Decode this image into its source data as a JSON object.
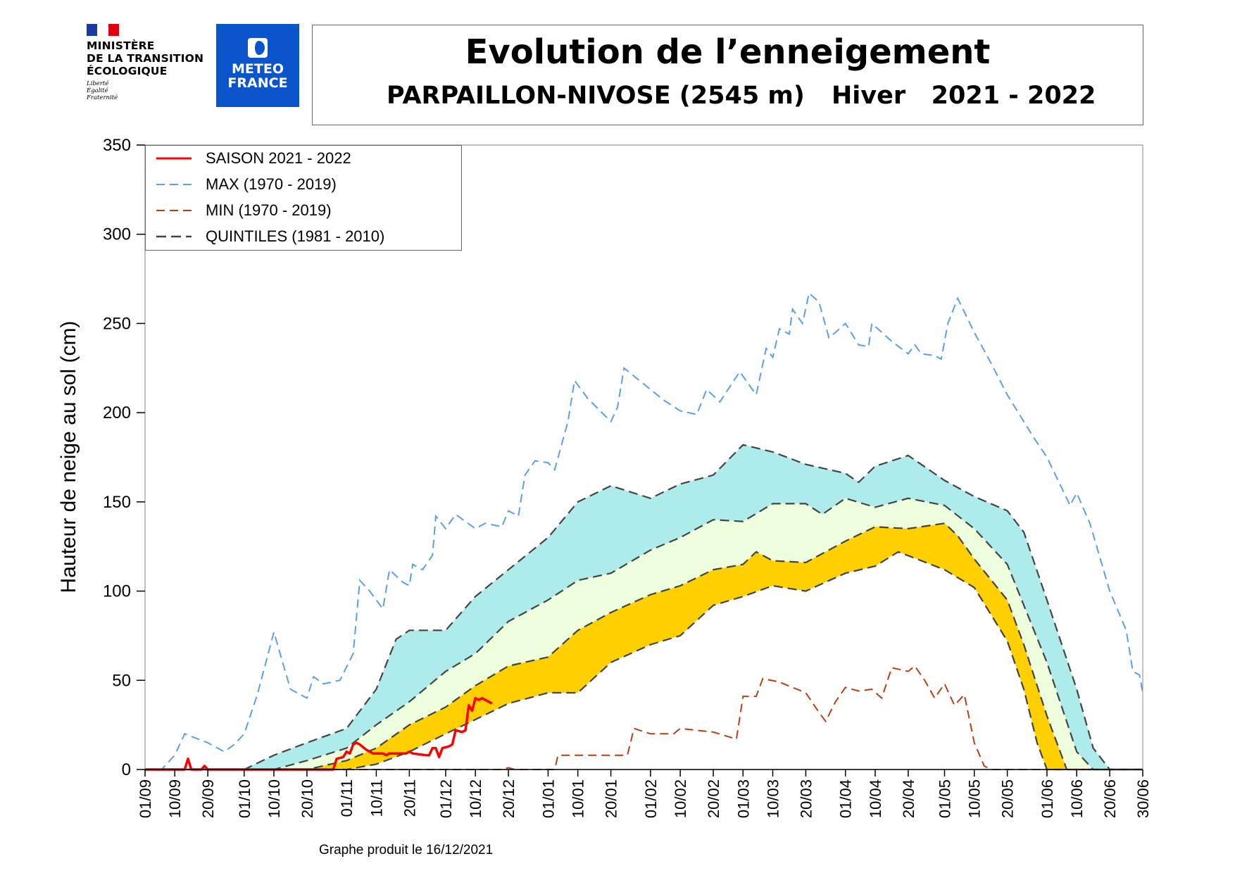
{
  "header": {
    "ministry_lines": [
      "MINISTÈRE",
      "DE LA TRANSITION",
      "ÉCOLOGIQUE"
    ],
    "motto": [
      "Liberté",
      "Égalité",
      "Fraternité"
    ],
    "meteo_logo": [
      "METEO",
      "FRANCE"
    ],
    "title": "Evolution de l’enneigement",
    "station": "PARPAILLON-NIVOSE (2545 m)",
    "season": "Hiver   2021 - 2022"
  },
  "footer": "Graphe produit le 16/12/2021",
  "chart_data": {
    "type": "line",
    "title": "Evolution de l’enneigement",
    "ylabel": "Hauteur de neige au sol (cm)",
    "xlabel": "",
    "ylim": [
      0,
      350
    ],
    "yticks": [
      0,
      50,
      100,
      150,
      200,
      250,
      300,
      350
    ],
    "xlim": [
      "01/09",
      "30/06"
    ],
    "xticks": [
      "01/09",
      "10/09",
      "20/09",
      "01/10",
      "10/10",
      "20/10",
      "01/11",
      "10/11",
      "20/11",
      "01/12",
      "10/12",
      "20/12",
      "01/01",
      "10/01",
      "20/01",
      "01/02",
      "10/02",
      "20/02",
      "01/03",
      "10/03",
      "20/03",
      "01/04",
      "10/04",
      "20/04",
      "01/05",
      "10/05",
      "20/05",
      "01/06",
      "10/06",
      "20/06",
      "30/06"
    ],
    "grid": false,
    "legend_position": "top-left",
    "colors": {
      "season": "#ff0000",
      "max": "#5a9ff0",
      "min": "#b8400f",
      "quintiles": "#444444",
      "band_q20_q40": "#ffd000",
      "band_q40_q60": "#eeffdd",
      "band_q60_q80": "#aeeceb"
    },
    "series": [
      {
        "name": "SAISON 2021 - 2022",
        "style": "solid",
        "points": [
          [
            "01/09",
            0
          ],
          [
            "13/09",
            0
          ],
          [
            "14/09",
            6
          ],
          [
            "15/09",
            0
          ],
          [
            "18/09",
            0
          ],
          [
            "19/09",
            2
          ],
          [
            "20/09",
            0
          ],
          [
            "28/10",
            0
          ],
          [
            "29/10",
            6
          ],
          [
            "31/10",
            7
          ],
          [
            "01/11",
            10
          ],
          [
            "02/11",
            9
          ],
          [
            "03/11",
            14
          ],
          [
            "04/11",
            15
          ],
          [
            "05/11",
            14
          ],
          [
            "07/11",
            11
          ],
          [
            "09/11",
            9
          ],
          [
            "12/11",
            9
          ],
          [
            "13/11",
            8
          ],
          [
            "14/11",
            9
          ],
          [
            "19/11",
            9
          ],
          [
            "20/11",
            10
          ],
          [
            "21/11",
            9
          ],
          [
            "25/11",
            8
          ],
          [
            "26/11",
            8
          ],
          [
            "27/11",
            12
          ],
          [
            "28/11",
            12
          ],
          [
            "29/11",
            7
          ],
          [
            "30/11",
            12
          ],
          [
            "02/12",
            13
          ],
          [
            "03/12",
            14
          ],
          [
            "04/12",
            22
          ],
          [
            "06/12",
            21
          ],
          [
            "07/12",
            22
          ],
          [
            "08/12",
            36
          ],
          [
            "09/12",
            33
          ],
          [
            "10/12",
            40
          ],
          [
            "11/12",
            39
          ],
          [
            "12/12",
            40
          ],
          [
            "15/12",
            37
          ]
        ]
      },
      {
        "name": "MAX (1970 - 2019)",
        "style": "dashed",
        "points": [
          [
            "01/09",
            0
          ],
          [
            "06/09",
            0
          ],
          [
            "10/09",
            8
          ],
          [
            "13/09",
            20
          ],
          [
            "20/09",
            15
          ],
          [
            "25/09",
            10
          ],
          [
            "28/09",
            14
          ],
          [
            "01/10",
            20
          ],
          [
            "05/10",
            42
          ],
          [
            "10/10",
            77
          ],
          [
            "15/10",
            45
          ],
          [
            "20/10",
            40
          ],
          [
            "22/10",
            52
          ],
          [
            "25/10",
            48
          ],
          [
            "30/10",
            50
          ],
          [
            "03/11",
            65
          ],
          [
            "05/11",
            106
          ],
          [
            "08/11",
            100
          ],
          [
            "12/11",
            90
          ],
          [
            "14/11",
            112
          ],
          [
            "18/11",
            105
          ],
          [
            "20/11",
            103
          ],
          [
            "21/11",
            115
          ],
          [
            "24/11",
            112
          ],
          [
            "27/11",
            120
          ],
          [
            "28/11",
            142
          ],
          [
            "01/12",
            135
          ],
          [
            "04/12",
            143
          ],
          [
            "10/12",
            135
          ],
          [
            "13/12",
            138
          ],
          [
            "18/12",
            136
          ],
          [
            "20/12",
            145
          ],
          [
            "23/12",
            142
          ],
          [
            "25/12",
            165
          ],
          [
            "28/12",
            173
          ],
          [
            "01/01",
            172
          ],
          [
            "03/01",
            168
          ],
          [
            "07/01",
            195
          ],
          [
            "09/01",
            218
          ],
          [
            "13/01",
            208
          ],
          [
            "20/01",
            195
          ],
          [
            "22/01",
            203
          ],
          [
            "24/01",
            225
          ],
          [
            "01/02",
            213
          ],
          [
            "05/02",
            207
          ],
          [
            "10/02",
            201
          ],
          [
            "15/02",
            199
          ],
          [
            "18/02",
            213
          ],
          [
            "22/02",
            206
          ],
          [
            "28/02",
            223
          ],
          [
            "05/03",
            210
          ],
          [
            "08/03",
            236
          ],
          [
            "10/03",
            231
          ],
          [
            "12/03",
            247
          ],
          [
            "15/03",
            244
          ],
          [
            "16/03",
            258
          ],
          [
            "19/03",
            250
          ],
          [
            "21/03",
            267
          ],
          [
            "24/03",
            262
          ],
          [
            "27/03",
            242
          ],
          [
            "29/03",
            245
          ],
          [
            "01/04",
            250
          ],
          [
            "05/04",
            238
          ],
          [
            "08/04",
            237
          ],
          [
            "09/04",
            250
          ],
          [
            "15/04",
            240
          ],
          [
            "20/04",
            233
          ],
          [
            "22/04",
            238
          ],
          [
            "24/04",
            233
          ],
          [
            "28/04",
            232
          ],
          [
            "30/04",
            230
          ],
          [
            "02/05",
            250
          ],
          [
            "05/05",
            264
          ],
          [
            "10/05",
            245
          ],
          [
            "15/05",
            228
          ],
          [
            "20/05",
            210
          ],
          [
            "25/05",
            195
          ],
          [
            "28/05",
            186
          ],
          [
            "01/06",
            175
          ],
          [
            "08/06",
            148
          ],
          [
            "10/06",
            155
          ],
          [
            "14/06",
            138
          ],
          [
            "20/06",
            100
          ],
          [
            "25/06",
            78
          ],
          [
            "27/06",
            55
          ],
          [
            "29/06",
            53
          ],
          [
            "30/06",
            43
          ]
        ]
      },
      {
        "name": "MIN (1970 - 2019)",
        "style": "dashed",
        "points": [
          [
            "01/09",
            0
          ],
          [
            "18/12",
            0
          ],
          [
            "20/12",
            1
          ],
          [
            "22/12",
            0
          ],
          [
            "03/01",
            0
          ],
          [
            "04/01",
            8
          ],
          [
            "25/01",
            8
          ],
          [
            "27/01",
            23
          ],
          [
            "01/02",
            20
          ],
          [
            "08/02",
            20
          ],
          [
            "10/02",
            23
          ],
          [
            "20/02",
            21
          ],
          [
            "27/02",
            17
          ],
          [
            "01/03",
            41
          ],
          [
            "05/03",
            41
          ],
          [
            "07/03",
            51
          ],
          [
            "12/03",
            49
          ],
          [
            "20/03",
            43
          ],
          [
            "24/03",
            32
          ],
          [
            "26/03",
            27
          ],
          [
            "29/03",
            38
          ],
          [
            "01/04",
            46
          ],
          [
            "05/04",
            44
          ],
          [
            "09/04",
            45
          ],
          [
            "12/04",
            40
          ],
          [
            "15/04",
            57
          ],
          [
            "20/04",
            55
          ],
          [
            "22/04",
            58
          ],
          [
            "25/04",
            50
          ],
          [
            "28/04",
            40
          ],
          [
            "01/05",
            48
          ],
          [
            "04/05",
            36
          ],
          [
            "07/05",
            42
          ],
          [
            "10/05",
            15
          ],
          [
            "13/05",
            2
          ],
          [
            "15/05",
            0
          ],
          [
            "30/06",
            0
          ]
        ]
      },
      {
        "name": "QUINTILES (1981 - 2010)",
        "style": "dashed",
        "q20": [
          [
            "01/09",
            0
          ],
          [
            "01/11",
            0
          ],
          [
            "10/11",
            3
          ],
          [
            "20/11",
            10
          ],
          [
            "01/12",
            20
          ],
          [
            "10/12",
            28
          ],
          [
            "20/12",
            37
          ],
          [
            "01/01",
            43
          ],
          [
            "10/01",
            43
          ],
          [
            "20/01",
            60
          ],
          [
            "01/02",
            70
          ],
          [
            "10/02",
            75
          ],
          [
            "20/02",
            92
          ],
          [
            "01/03",
            97
          ],
          [
            "10/03",
            103
          ],
          [
            "20/03",
            100
          ],
          [
            "01/04",
            110
          ],
          [
            "10/04",
            114
          ],
          [
            "17/04",
            122
          ],
          [
            "01/05",
            112
          ],
          [
            "10/05",
            102
          ],
          [
            "20/05",
            72
          ],
          [
            "25/05",
            45
          ],
          [
            "29/05",
            15
          ],
          [
            "01/06",
            0
          ],
          [
            "30/06",
            0
          ]
        ],
        "q40": [
          [
            "01/09",
            0
          ],
          [
            "20/10",
            0
          ],
          [
            "01/11",
            5
          ],
          [
            "10/11",
            12
          ],
          [
            "20/11",
            25
          ],
          [
            "01/12",
            35
          ],
          [
            "10/12",
            47
          ],
          [
            "20/12",
            58
          ],
          [
            "01/01",
            63
          ],
          [
            "10/01",
            78
          ],
          [
            "20/01",
            88
          ],
          [
            "01/02",
            98
          ],
          [
            "10/02",
            103
          ],
          [
            "20/02",
            112
          ],
          [
            "01/03",
            115
          ],
          [
            "05/03",
            122
          ],
          [
            "10/03",
            117
          ],
          [
            "20/03",
            116
          ],
          [
            "01/04",
            128
          ],
          [
            "10/04",
            136
          ],
          [
            "20/04",
            135
          ],
          [
            "01/05",
            138
          ],
          [
            "05/05",
            131
          ],
          [
            "10/05",
            118
          ],
          [
            "20/05",
            95
          ],
          [
            "25/05",
            70
          ],
          [
            "01/06",
            30
          ],
          [
            "07/06",
            0
          ],
          [
            "30/06",
            0
          ]
        ],
        "q60": [
          [
            "01/09",
            0
          ],
          [
            "10/10",
            0
          ],
          [
            "20/10",
            5
          ],
          [
            "01/11",
            12
          ],
          [
            "10/11",
            25
          ],
          [
            "20/11",
            38
          ],
          [
            "01/12",
            55
          ],
          [
            "10/12",
            65
          ],
          [
            "20/12",
            83
          ],
          [
            "01/01",
            95
          ],
          [
            "10/01",
            106
          ],
          [
            "20/01",
            110
          ],
          [
            "01/02",
            123
          ],
          [
            "10/02",
            130
          ],
          [
            "20/02",
            140
          ],
          [
            "01/03",
            139
          ],
          [
            "10/03",
            149
          ],
          [
            "20/03",
            149
          ],
          [
            "25/03",
            143
          ],
          [
            "01/04",
            152
          ],
          [
            "10/04",
            147
          ],
          [
            "20/04",
            152
          ],
          [
            "01/05",
            148
          ],
          [
            "10/05",
            135
          ],
          [
            "20/05",
            115
          ],
          [
            "01/06",
            60
          ],
          [
            "10/06",
            10
          ],
          [
            "15/06",
            0
          ],
          [
            "30/06",
            0
          ]
        ],
        "q80": [
          [
            "01/09",
            0
          ],
          [
            "01/10",
            0
          ],
          [
            "10/10",
            8
          ],
          [
            "20/10",
            15
          ],
          [
            "01/11",
            23
          ],
          [
            "10/11",
            45
          ],
          [
            "16/11",
            73
          ],
          [
            "20/11",
            78
          ],
          [
            "01/12",
            78
          ],
          [
            "10/12",
            97
          ],
          [
            "20/12",
            112
          ],
          [
            "01/01",
            130
          ],
          [
            "10/01",
            150
          ],
          [
            "20/01",
            159
          ],
          [
            "01/02",
            152
          ],
          [
            "10/02",
            160
          ],
          [
            "20/02",
            165
          ],
          [
            "01/03",
            182
          ],
          [
            "10/03",
            178
          ],
          [
            "20/03",
            171
          ],
          [
            "01/04",
            166
          ],
          [
            "05/04",
            161
          ],
          [
            "10/04",
            170
          ],
          [
            "20/04",
            176
          ],
          [
            "01/05",
            162
          ],
          [
            "10/05",
            153
          ],
          [
            "20/05",
            145
          ],
          [
            "25/05",
            133
          ],
          [
            "01/06",
            95
          ],
          [
            "10/06",
            45
          ],
          [
            "15/06",
            12
          ],
          [
            "20/06",
            0
          ],
          [
            "30/06",
            0
          ]
        ]
      }
    ]
  }
}
